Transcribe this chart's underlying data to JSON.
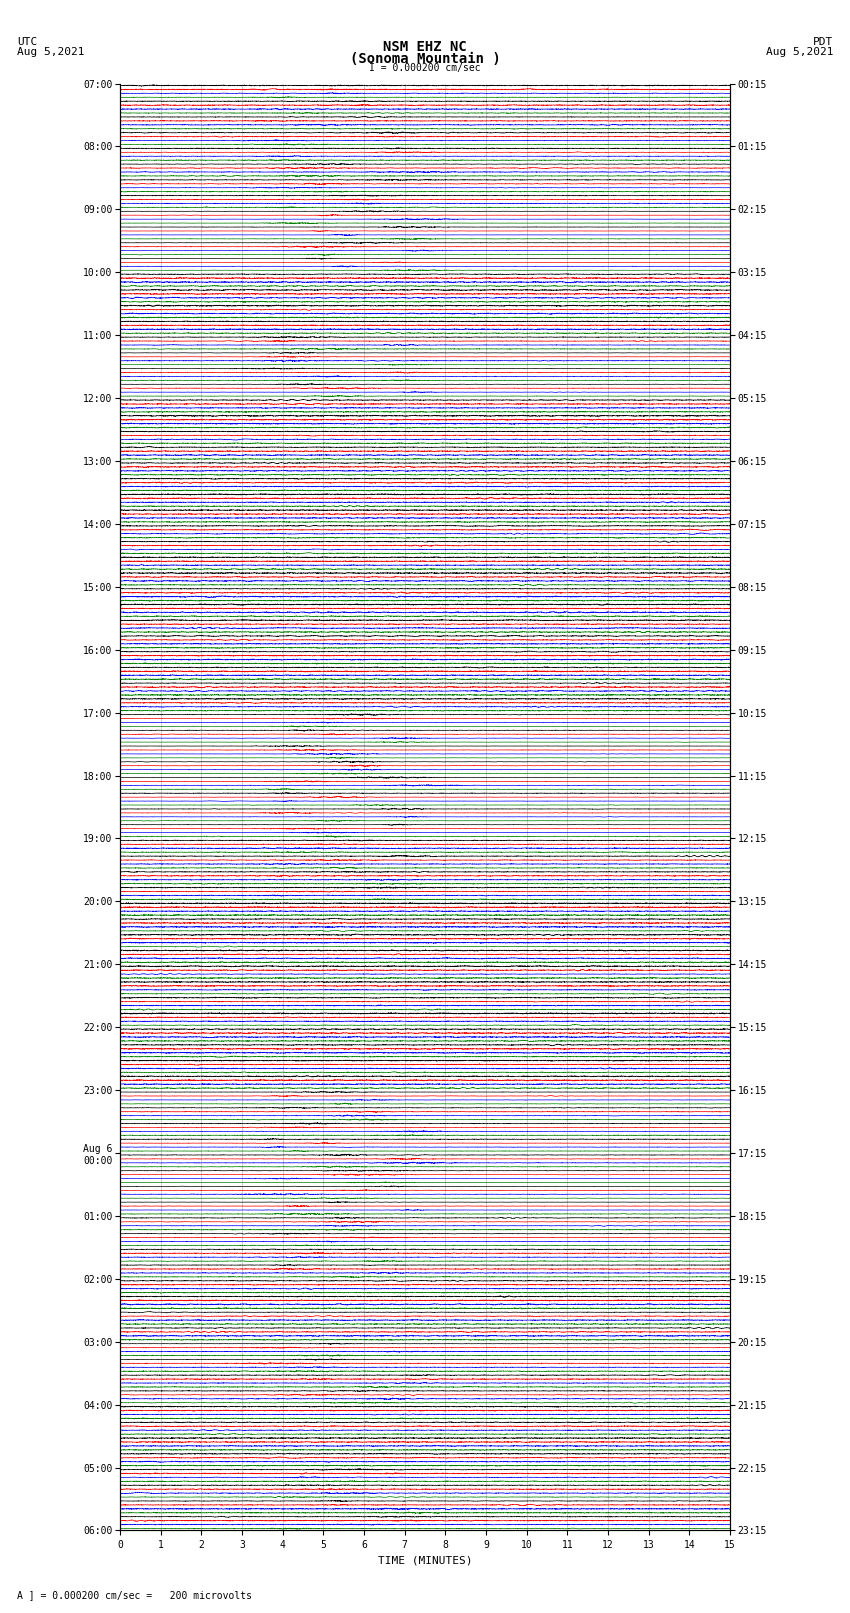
{
  "title_line1": "NSM EHZ NC",
  "title_line2": "(Sonoma Mountain )",
  "scale_label": "I = 0.000200 cm/sec",
  "utc_label": "UTC",
  "utc_date": "Aug 5,2021",
  "pdt_label": "PDT",
  "pdt_date": "Aug 5,2021",
  "footer_label": "A ] = 0.000200 cm/sec =   200 microvolts",
  "xlabel": "TIME (MINUTES)",
  "left_times": [
    "07:00",
    "",
    "",
    "",
    "08:00",
    "",
    "",
    "",
    "09:00",
    "",
    "",
    "",
    "10:00",
    "",
    "",
    "",
    "11:00",
    "",
    "",
    "",
    "12:00",
    "",
    "",
    "",
    "13:00",
    "",
    "",
    "",
    "14:00",
    "",
    "",
    "",
    "15:00",
    "",
    "",
    "",
    "16:00",
    "",
    "",
    "",
    "17:00",
    "",
    "",
    "",
    "18:00",
    "",
    "",
    "",
    "19:00",
    "",
    "",
    "",
    "20:00",
    "",
    "",
    "",
    "21:00",
    "",
    "",
    "",
    "22:00",
    "",
    "",
    "",
    "23:00",
    "",
    "",
    "",
    "Aug 6\n00:00",
    "",
    "",
    "",
    "01:00",
    "",
    "",
    "",
    "02:00",
    "",
    "",
    "",
    "03:00",
    "",
    "",
    "",
    "04:00",
    "",
    "",
    "",
    "05:00",
    "",
    "",
    "",
    "06:00"
  ],
  "right_times": [
    "00:15",
    "",
    "",
    "",
    "01:15",
    "",
    "",
    "",
    "02:15",
    "",
    "",
    "",
    "03:15",
    "",
    "",
    "",
    "04:15",
    "",
    "",
    "",
    "05:15",
    "",
    "",
    "",
    "06:15",
    "",
    "",
    "",
    "07:15",
    "",
    "",
    "",
    "08:15",
    "",
    "",
    "",
    "09:15",
    "",
    "",
    "",
    "10:15",
    "",
    "",
    "",
    "11:15",
    "",
    "",
    "",
    "12:15",
    "",
    "",
    "",
    "13:15",
    "",
    "",
    "",
    "14:15",
    "",
    "",
    "",
    "15:15",
    "",
    "",
    "",
    "16:15",
    "",
    "",
    "",
    "17:15",
    "",
    "",
    "",
    "18:15",
    "",
    "",
    "",
    "19:15",
    "",
    "",
    "",
    "20:15",
    "",
    "",
    "",
    "21:15",
    "",
    "",
    "",
    "22:15",
    "",
    "",
    "",
    "23:15"
  ],
  "n_rows": 92,
  "traces_per_row": 4,
  "colors": [
    "black",
    "red",
    "blue",
    "green"
  ],
  "bg_color": "#ffffff",
  "n_minutes": 15,
  "xmin": 0,
  "xmax": 15,
  "title_fontsize": 10,
  "label_fontsize": 8,
  "tick_fontsize": 7,
  "grid_color": "#aaaaaa",
  "n_samples": 3000
}
